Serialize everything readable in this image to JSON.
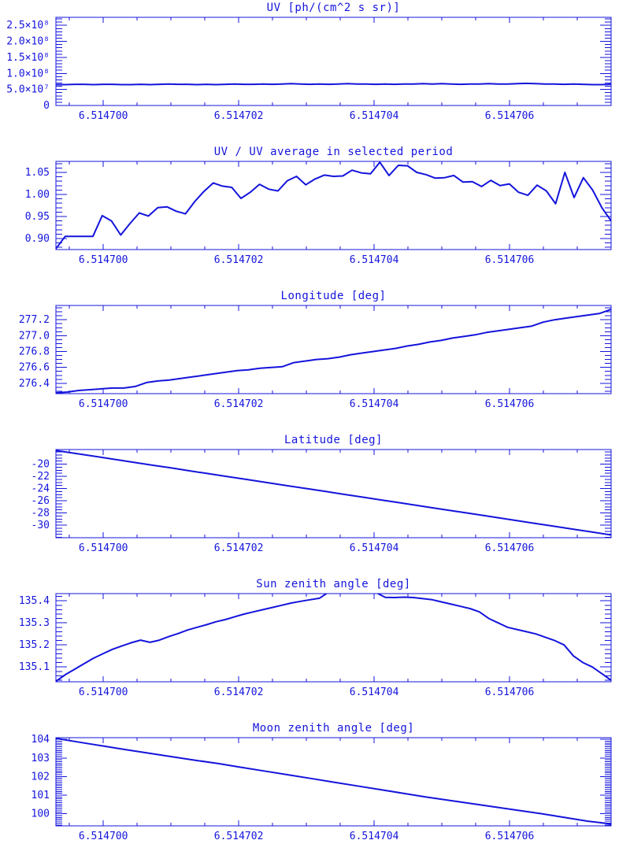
{
  "colors": {
    "plot_blue": "#1414dc",
    "background": "#ffffff"
  },
  "chart_data": [
    {
      "id": "uv",
      "type": "line",
      "title": "UV [ph/(cm^2 s sr)]",
      "xlabel": "",
      "ylabel": "",
      "x_axis": {
        "min": 6.5146993,
        "max": 6.5147075,
        "ticks": [
          6.5147,
          6.514702,
          6.514704,
          6.514706
        ],
        "tick_labels": [
          "6.514700",
          "6.514702",
          "6.514704",
          "6.514706"
        ],
        "minor_step": 5e-07
      },
      "y_axis": {
        "min": 0,
        "max": 275000000.0,
        "ticks": [
          0,
          50000000.0,
          100000000.0,
          150000000.0,
          200000000.0,
          250000000.0
        ],
        "tick_labels": [
          "0",
          "5.0×10⁷",
          "1.0×10⁸",
          "1.5×10⁸",
          "2.0×10⁸",
          "2.5×10⁸"
        ],
        "minor_step": 10000000.0
      },
      "series": [
        {
          "name": "UV",
          "x_spacing": "even",
          "values": [
            65000000.0,
            65000000.0,
            66000000.0,
            66000000.0,
            65000000.0,
            66000000.0,
            66000000.0,
            65000000.0,
            65000000.0,
            66000000.0,
            65000000.0,
            66000000.0,
            67000000.0,
            66000000.0,
            66000000.0,
            65000000.0,
            66000000.0,
            65000000.0,
            66000000.0,
            67000000.0,
            66000000.0,
            66000000.0,
            67000000.0,
            66000000.0,
            67000000.0,
            68000000.0,
            67000000.0,
            66000000.0,
            67000000.0,
            66000000.0,
            67000000.0,
            68000000.0,
            67000000.0,
            67000000.0,
            66000000.0,
            67000000.0,
            66000000.0,
            67000000.0,
            67000000.0,
            68000000.0,
            67000000.0,
            68000000.0,
            67000000.0,
            66000000.0,
            67000000.0,
            67000000.0,
            68000000.0,
            67000000.0,
            67000000.0,
            68000000.0,
            69000000.0,
            68000000.0,
            67000000.0,
            67000000.0,
            66000000.0,
            67000000.0,
            66000000.0,
            65000000.0,
            65000000.0,
            66000000.0
          ]
        }
      ]
    },
    {
      "id": "uv-ratio",
      "type": "line",
      "title": "UV / UV average in selected period",
      "xlabel": "",
      "ylabel": "",
      "x_axis": {
        "min": 6.5146993,
        "max": 6.5147075,
        "ticks": [
          6.5147,
          6.514702,
          6.514704,
          6.514706
        ],
        "tick_labels": [
          "6.514700",
          "6.514702",
          "6.514704",
          "6.514706"
        ],
        "minor_step": 5e-07
      },
      "y_axis": {
        "min": 0.875,
        "max": 1.075,
        "ticks": [
          0.9,
          0.95,
          1.0,
          1.05
        ],
        "tick_labels": [
          "0.90",
          "0.95",
          "1.00",
          "1.05"
        ],
        "minor_step": 0.01
      },
      "series": [
        {
          "name": "UV ratio",
          "x_spacing": "even",
          "values": [
            0.877,
            0.905,
            0.905,
            0.905,
            0.905,
            0.952,
            0.94,
            0.908,
            0.934,
            0.958,
            0.951,
            0.97,
            0.972,
            0.962,
            0.956,
            0.984,
            1.007,
            1.026,
            1.019,
            1.016,
            0.991,
            1.005,
            1.023,
            1.012,
            1.008,
            1.031,
            1.041,
            1.022,
            1.035,
            1.044,
            1.041,
            1.042,
            1.055,
            1.049,
            1.047,
            1.073,
            1.043,
            1.066,
            1.065,
            1.05,
            1.045,
            1.037,
            1.038,
            1.043,
            1.028,
            1.029,
            1.018,
            1.032,
            1.02,
            1.024,
            1.005,
            0.998,
            1.021,
            1.008,
            0.979,
            1.05,
            0.993,
            1.038,
            1.01,
            0.97,
            0.94
          ]
        }
      ]
    },
    {
      "id": "longitude",
      "type": "line",
      "title": "Longitude [deg]",
      "xlabel": "",
      "ylabel": "",
      "x_axis": {
        "min": 6.5146993,
        "max": 6.5147075,
        "ticks": [
          6.5147,
          6.514702,
          6.514704,
          6.514706
        ],
        "tick_labels": [
          "6.514700",
          "6.514702",
          "6.514704",
          "6.514706"
        ],
        "minor_step": 5e-07
      },
      "y_axis": {
        "min": 276.27,
        "max": 277.38,
        "ticks": [
          276.4,
          276.6,
          276.8,
          277.0,
          277.2
        ],
        "tick_labels": [
          "276.4",
          "276.6",
          "276.8",
          "277.0",
          "277.2"
        ],
        "minor_step": 0.05
      },
      "series": [
        {
          "name": "Longitude",
          "x_spacing": "even",
          "values": [
            276.28,
            276.29,
            276.31,
            276.32,
            276.33,
            276.34,
            276.34,
            276.36,
            276.41,
            276.43,
            276.44,
            276.46,
            276.48,
            276.5,
            276.52,
            276.54,
            276.56,
            276.57,
            276.59,
            276.6,
            276.61,
            276.66,
            276.68,
            276.7,
            276.71,
            276.73,
            276.76,
            276.78,
            276.8,
            276.82,
            276.84,
            276.87,
            276.89,
            276.92,
            276.94,
            276.97,
            276.99,
            277.01,
            277.04,
            277.06,
            277.08,
            277.1,
            277.12,
            277.17,
            277.2,
            277.22,
            277.24,
            277.26,
            277.28,
            277.33
          ]
        }
      ]
    },
    {
      "id": "latitude",
      "type": "line",
      "title": "Latitude [deg]",
      "xlabel": "",
      "ylabel": "",
      "x_axis": {
        "min": 6.5146993,
        "max": 6.5147075,
        "ticks": [
          6.5147,
          6.514702,
          6.514704,
          6.514706
        ],
        "tick_labels": [
          "6.514700",
          "6.514702",
          "6.514704",
          "6.514706"
        ],
        "minor_step": 5e-07
      },
      "y_axis": {
        "min": -32.05,
        "max": -17.6,
        "ticks": [
          -30,
          -28,
          -26,
          -24,
          -22,
          -20
        ],
        "tick_labels": [
          "-30",
          "-28",
          "-26",
          "-24",
          "-22",
          "-20"
        ],
        "minor_step": 0.5
      },
      "series": [
        {
          "name": "Latitude",
          "x_spacing": "even",
          "values": [
            -17.75,
            -18.23,
            -18.7,
            -19.18,
            -19.66,
            -20.14,
            -20.61,
            -21.09,
            -21.57,
            -22.05,
            -22.52,
            -23.0,
            -23.48,
            -23.96,
            -24.43,
            -24.91,
            -25.39,
            -25.87,
            -26.34,
            -26.82,
            -27.3,
            -27.78,
            -28.25,
            -28.73,
            -29.21,
            -29.69,
            -30.16,
            -30.64,
            -31.12,
            -31.6
          ]
        }
      ]
    },
    {
      "id": "sun-zenith",
      "type": "line",
      "title": "Sun zenith angle [deg]",
      "xlabel": "",
      "ylabel": "",
      "x_axis": {
        "min": 6.5146993,
        "max": 6.5147075,
        "ticks": [
          6.5147,
          6.514702,
          6.514704,
          6.514706
        ],
        "tick_labels": [
          "6.514700",
          "6.514702",
          "6.514704",
          "6.514706"
        ],
        "minor_step": 5e-07
      },
      "y_axis": {
        "min": 135.033,
        "max": 135.433,
        "ticks": [
          135.1,
          135.2,
          135.3,
          135.4
        ],
        "tick_labels": [
          "135.1",
          "135.2",
          "135.3",
          "135.4"
        ],
        "minor_step": 0.02
      },
      "series": [
        {
          "name": "Sun zenith angle",
          "x_spacing": "even",
          "values": [
            135.035,
            135.065,
            135.09,
            135.115,
            135.14,
            135.16,
            135.18,
            135.195,
            135.21,
            135.222,
            135.212,
            135.222,
            135.238,
            135.252,
            135.268,
            135.28,
            135.292,
            135.305,
            135.315,
            135.328,
            135.34,
            135.35,
            135.36,
            135.37,
            135.38,
            135.39,
            135.398,
            135.405,
            135.412,
            135.44,
            135.445,
            135.445,
            135.445,
            135.44,
            135.438,
            135.416,
            135.415,
            135.417,
            135.415,
            135.41,
            135.405,
            135.395,
            135.385,
            135.375,
            135.365,
            135.35,
            135.32,
            135.3,
            135.28,
            135.27,
            135.26,
            135.25,
            135.235,
            135.22,
            135.2,
            135.15,
            135.12,
            135.1,
            135.07,
            135.04
          ]
        }
      ]
    },
    {
      "id": "moon-zenith",
      "type": "line",
      "title": "Moon zenith angle [deg]",
      "xlabel": "",
      "ylabel": "",
      "x_axis": {
        "min": 6.5146993,
        "max": 6.5147075,
        "ticks": [
          6.5147,
          6.514702,
          6.514704,
          6.514706
        ],
        "tick_labels": [
          "6.514700",
          "6.514702",
          "6.514704",
          "6.514706"
        ],
        "minor_step": 5e-07
      },
      "y_axis": {
        "min": 99.35,
        "max": 104.09,
        "ticks": [
          100,
          101,
          102,
          103,
          104
        ],
        "tick_labels": [
          "100",
          "101",
          "102",
          "103",
          "104"
        ],
        "minor_step": 0.1
      },
      "series": [
        {
          "name": "Moon zenith angle",
          "x_spacing": "even",
          "values": [
            104.05,
            103.85,
            103.65,
            103.45,
            103.26,
            103.07,
            102.88,
            102.7,
            102.5,
            102.3,
            102.1,
            101.9,
            101.7,
            101.5,
            101.3,
            101.1,
            100.9,
            100.72,
            100.54,
            100.36,
            100.18,
            100.0,
            99.8,
            99.6,
            99.45
          ]
        }
      ]
    }
  ]
}
